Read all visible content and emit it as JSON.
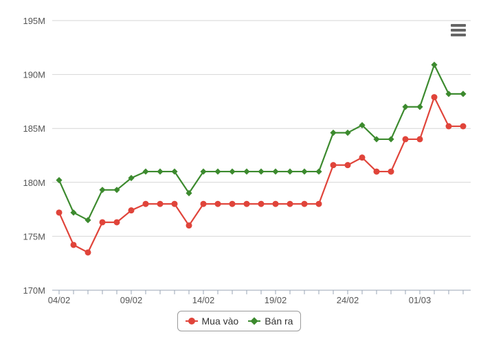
{
  "chart_data": {
    "type": "line",
    "x": [
      "04/02",
      "05/02",
      "06/02",
      "07/02",
      "08/02",
      "09/02",
      "10/02",
      "11/02",
      "12/02",
      "13/02",
      "14/02",
      "15/02",
      "16/02",
      "17/02",
      "18/02",
      "19/02",
      "20/02",
      "21/02",
      "22/02",
      "23/02",
      "24/02",
      "25/02",
      "26/02",
      "27/02",
      "28/02",
      "01/03",
      "02/03",
      "03/03",
      "04/03"
    ],
    "x_tick_labels": [
      "04/02",
      "09/02",
      "14/02",
      "19/02",
      "24/02",
      "01/03"
    ],
    "y_tick_labels": [
      "170M",
      "175M",
      "180M",
      "185M",
      "190M",
      "195M"
    ],
    "ylim": [
      170,
      195
    ],
    "y_unit": "M",
    "grid": "horizontal",
    "legend_position": "bottom-center",
    "series": [
      {
        "name": "Mua vào",
        "color": "#e0443a",
        "marker": "circle",
        "values": [
          177.2,
          174.2,
          173.5,
          176.3,
          176.3,
          177.4,
          178.0,
          178.0,
          178.0,
          176.0,
          178.0,
          178.0,
          178.0,
          178.0,
          178.0,
          178.0,
          178.0,
          178.0,
          178.0,
          181.6,
          181.6,
          182.3,
          181.0,
          181.0,
          184.0,
          184.0,
          187.9,
          185.2,
          185.2
        ]
      },
      {
        "name": "Bán ra",
        "color": "#3c8a2e",
        "marker": "diamond",
        "values": [
          180.2,
          177.2,
          176.5,
          179.3,
          179.3,
          180.4,
          181.0,
          181.0,
          181.0,
          179.0,
          181.0,
          181.0,
          181.0,
          181.0,
          181.0,
          181.0,
          181.0,
          181.0,
          181.0,
          184.6,
          184.6,
          185.3,
          184.0,
          184.0,
          187.0,
          187.0,
          190.9,
          188.2,
          188.2
        ]
      }
    ]
  },
  "icons": {
    "menu": "hamburger-menu-icon"
  }
}
